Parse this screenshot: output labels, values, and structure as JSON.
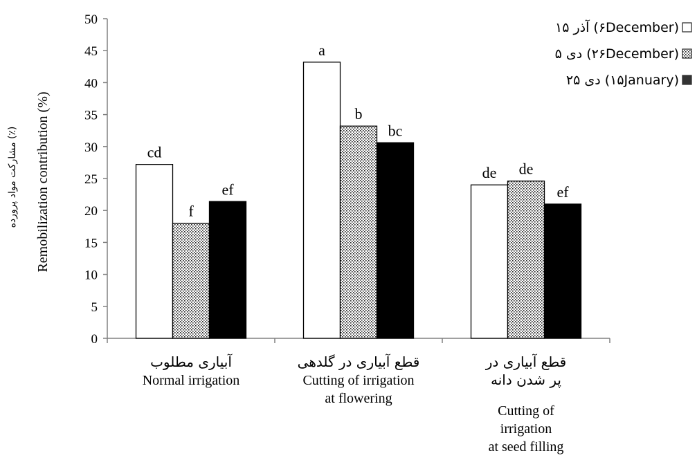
{
  "chart_data": {
    "type": "bar",
    "ylabel": "Remobilization contribution (%)",
    "ylabel_fa": "مشارکت مواد پرورده (٪)",
    "ylim": [
      0,
      50
    ],
    "yticks": [
      0,
      5,
      10,
      15,
      20,
      25,
      30,
      35,
      40,
      45,
      50
    ],
    "grid": false,
    "legend_position": "top-right",
    "categories": [
      {
        "fa": [
          "آبیاری مطلوب"
        ],
        "en": [
          "Normal irrigation"
        ]
      },
      {
        "fa": [
          "قطع آبیاری در گلدهی"
        ],
        "en": [
          "Cutting of irrigation",
          "at flowering"
        ]
      },
      {
        "fa": [
          "قطع آبیاری در",
          "پر شدن دانه"
        ],
        "en": [
          "Cutting of",
          "irrigation",
          "at seed filling"
        ]
      }
    ],
    "series": [
      {
        "name": "۱۵ آذر (۶December)",
        "pattern": "white",
        "values": [
          27.2,
          43.2,
          24.0
        ],
        "letters": [
          "cd",
          "a",
          "de"
        ]
      },
      {
        "name": "۵ دی (۲۶December)",
        "pattern": "dotted",
        "values": [
          18.0,
          33.2,
          24.6
        ],
        "letters": [
          "f",
          "b",
          "de"
        ]
      },
      {
        "name": "۲۵ دی (۱۵January)",
        "pattern": "black",
        "values": [
          21.4,
          30.6,
          21.0
        ],
        "letters": [
          "ef",
          "bc",
          "ef"
        ]
      }
    ]
  }
}
